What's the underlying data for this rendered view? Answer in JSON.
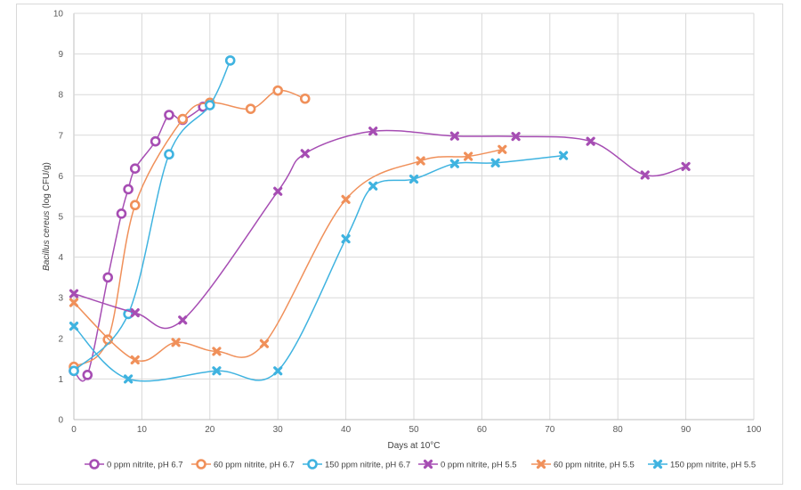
{
  "chart_data": {
    "type": "line",
    "xlabel": "Days at 10°C",
    "ylabel_italic": "Bacillus cereus",
    "ylabel_rest": " (log CFU/g)",
    "xlim": [
      0,
      100
    ],
    "ylim": [
      0,
      10
    ],
    "xticks": [
      0,
      10,
      20,
      30,
      40,
      50,
      60,
      70,
      80,
      90,
      100
    ],
    "yticks": [
      0,
      1,
      2,
      3,
      4,
      5,
      6,
      7,
      8,
      9,
      10
    ],
    "grid": true,
    "smooth": true,
    "legend_position": "bottom",
    "series": [
      {
        "name": "0 ppm nitrite, pH 6.7",
        "color": "#a64db3",
        "marker": "circle",
        "x": [
          0,
          2,
          5,
          7,
          8,
          9,
          12,
          14,
          16,
          19
        ],
        "y": [
          1.2,
          1.1,
          3.5,
          5.07,
          5.67,
          6.18,
          6.85,
          7.5,
          7.38,
          7.7
        ]
      },
      {
        "name": "60 ppm nitrite, pH 6.7",
        "color": "#f0905a",
        "marker": "circle",
        "x": [
          0,
          5,
          9,
          16,
          20,
          26,
          30,
          34
        ],
        "y": [
          1.3,
          1.97,
          5.28,
          7.4,
          7.8,
          7.65,
          8.1,
          7.9
        ]
      },
      {
        "name": "150 ppm nitrite, pH 6.7",
        "color": "#3fb3e0",
        "marker": "circle",
        "x": [
          0,
          8,
          14,
          20,
          23
        ],
        "y": [
          1.2,
          2.6,
          6.53,
          7.74,
          8.84
        ]
      },
      {
        "name": "0 ppm nitrite, pH 5.5",
        "color": "#a64db3",
        "marker": "x",
        "x": [
          0,
          9,
          16,
          30,
          34,
          44,
          56,
          65,
          76,
          84,
          90
        ],
        "y": [
          3.1,
          2.63,
          2.45,
          5.62,
          6.55,
          7.1,
          6.98,
          6.97,
          6.85,
          6.02,
          6.23
        ]
      },
      {
        "name": "60 ppm nitrite, pH 5.5",
        "color": "#f0905a",
        "marker": "x",
        "x": [
          0,
          9,
          15,
          21,
          28,
          40,
          51,
          58,
          63
        ],
        "y": [
          2.88,
          1.47,
          1.9,
          1.68,
          1.87,
          5.42,
          6.37,
          6.48,
          6.65
        ]
      },
      {
        "name": "150 ppm nitrite, pH 5.5",
        "color": "#3fb3e0",
        "marker": "x",
        "x": [
          0,
          8,
          21,
          30,
          40,
          44,
          50,
          56,
          62,
          72
        ],
        "y": [
          2.3,
          1.0,
          1.2,
          1.2,
          4.45,
          5.75,
          5.92,
          6.3,
          6.32,
          6.5
        ]
      }
    ]
  }
}
